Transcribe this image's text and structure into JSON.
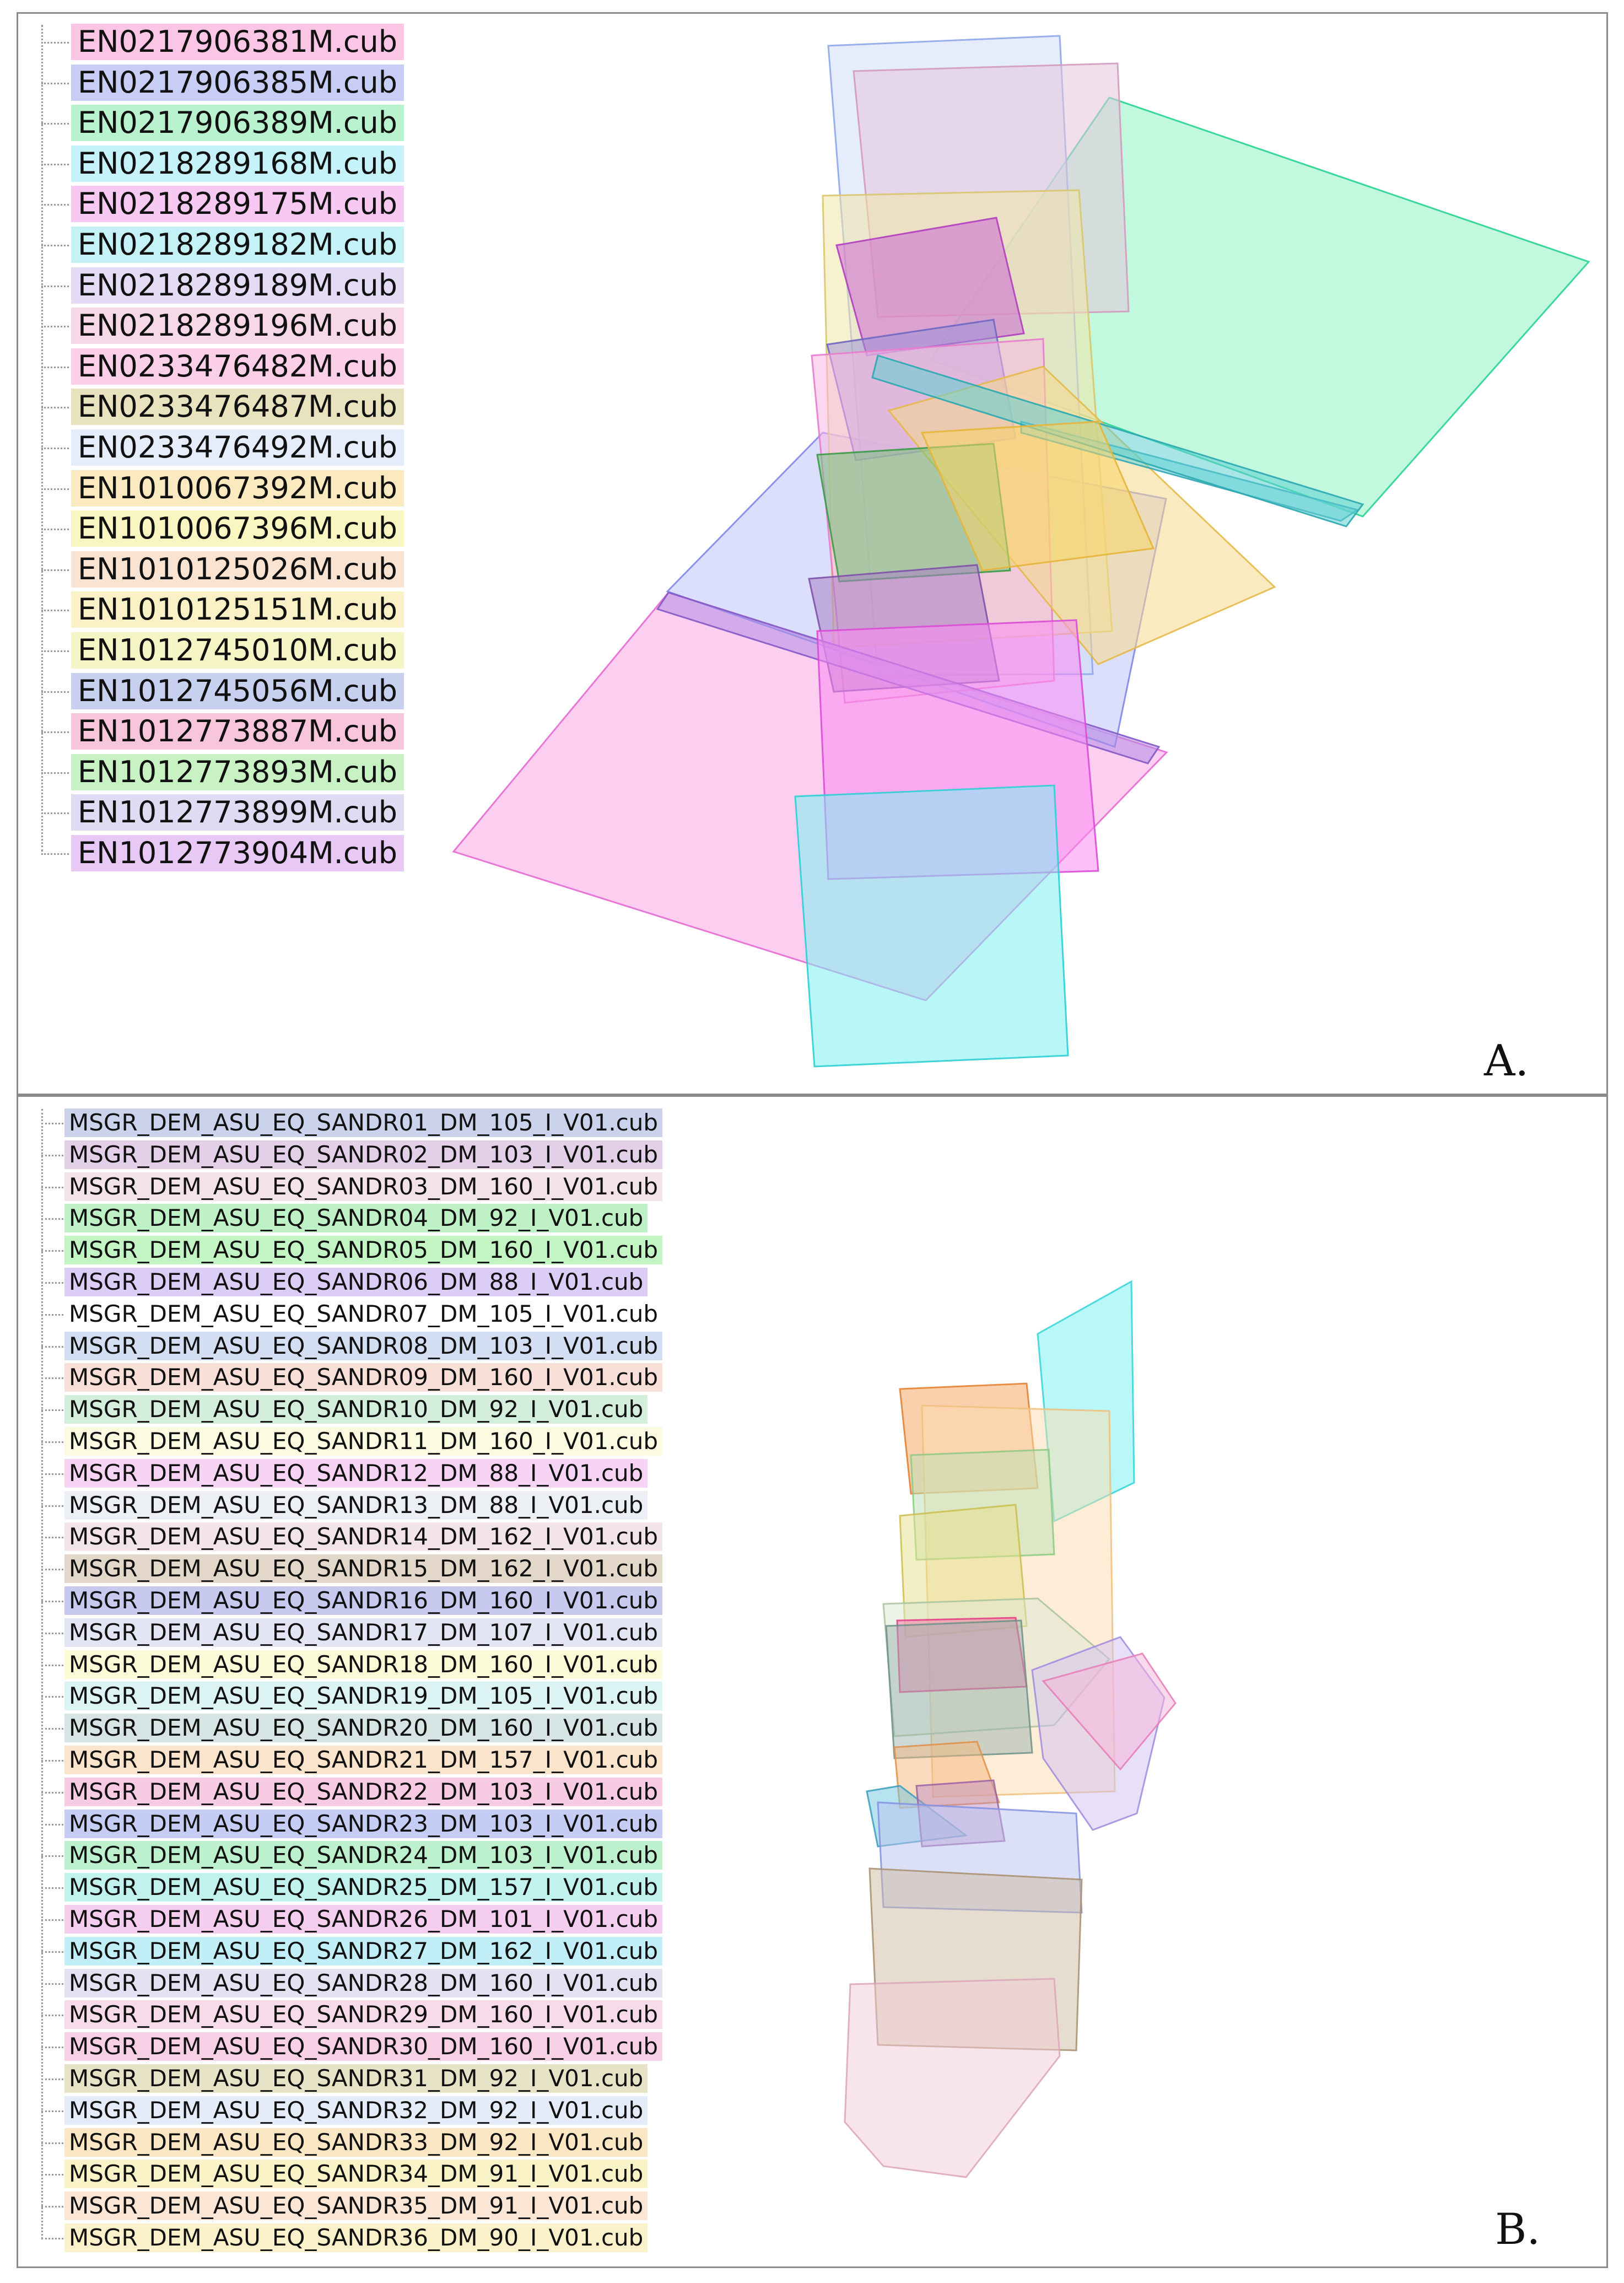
{
  "panelA": {
    "letter": "A.",
    "files": [
      {
        "name": "EN0217906381M.cub",
        "color": "#fbc6e6"
      },
      {
        "name": "EN0217906385M.cub",
        "color": "#c7cdf4"
      },
      {
        "name": "EN0217906389M.cub",
        "color": "#b9f2cf"
      },
      {
        "name": "EN0218289168M.cub",
        "color": "#c6f3fa"
      },
      {
        "name": "EN0218289175M.cub",
        "color": "#f7c8f2"
      },
      {
        "name": "EN0218289182M.cub",
        "color": "#c4f2f7"
      },
      {
        "name": "EN0218289189M.cub",
        "color": "#e3dcf4"
      },
      {
        "name": "EN0218289196M.cub",
        "color": "#f7d8e6"
      },
      {
        "name": "EN0233476482M.cub",
        "color": "#fbcfe7"
      },
      {
        "name": "EN0233476487M.cub",
        "color": "#e9e2bf"
      },
      {
        "name": "EN0233476492M.cub",
        "color": "#e5edfb"
      },
      {
        "name": "EN1010067392M.cub",
        "color": "#fbe9bf"
      },
      {
        "name": "EN1010067396M.cub",
        "color": "#f9f6c1"
      },
      {
        "name": "EN1010125026M.cub",
        "color": "#fbe3d2"
      },
      {
        "name": "EN1010125151M.cub",
        "color": "#fbf1c7"
      },
      {
        "name": "EN1012745010M.cub",
        "color": "#f5f5c6"
      },
      {
        "name": "EN1012745056M.cub",
        "color": "#c8d0f0"
      },
      {
        "name": "EN1012773887M.cub",
        "color": "#f8c6da"
      },
      {
        "name": "EN1012773893M.cub",
        "color": "#c9f2c4"
      },
      {
        "name": "EN1012773899M.cub",
        "color": "#dedbf2"
      },
      {
        "name": "EN1012773904M.cub",
        "color": "#e8c8f4"
      }
    ]
  },
  "panelB": {
    "letter": "B.",
    "files": [
      {
        "name": "MSGR_DEM_ASU_EQ_SANDR01_DM_105_I_V01.cub",
        "color": "#cbd3ec"
      },
      {
        "name": "MSGR_DEM_ASU_EQ_SANDR02_DM_103_I_V01.cub",
        "color": "#e4cfe8"
      },
      {
        "name": "MSGR_DEM_ASU_EQ_SANDR03_DM_160_I_V01.cub",
        "color": "#f3e3e6"
      },
      {
        "name": "MSGR_DEM_ASU_EQ_SANDR04_DM_92_I_V01.cub",
        "color": "#bff1c6"
      },
      {
        "name": "MSGR_DEM_ASU_EQ_SANDR05_DM_160_I_V01.cub",
        "color": "#c3f5c4"
      },
      {
        "name": "MSGR_DEM_ASU_EQ_SANDR06_DM_88_I_V01.cub",
        "color": "#dccdf6"
      },
      {
        "name": "MSGR_DEM_ASU_EQ_SANDR07_DM_105_I_V01.cub",
        "color": "#ffffff"
      },
      {
        "name": "MSGR_DEM_ASU_EQ_SANDR08_DM_103_I_V01.cub",
        "color": "#d4def2"
      },
      {
        "name": "MSGR_DEM_ASU_EQ_SANDR09_DM_160_I_V01.cub",
        "color": "#f8e0d8"
      },
      {
        "name": "MSGR_DEM_ASU_EQ_SANDR10_DM_92_I_V01.cub",
        "color": "#d3eedb"
      },
      {
        "name": "MSGR_DEM_ASU_EQ_SANDR11_DM_160_I_V01.cub",
        "color": "#fbfbe2"
      },
      {
        "name": "MSGR_DEM_ASU_EQ_SANDR12_DM_88_I_V01.cub",
        "color": "#f7d4f4"
      },
      {
        "name": "MSGR_DEM_ASU_EQ_SANDR13_DM_88_I_V01.cub",
        "color": "#eceff3"
      },
      {
        "name": "MSGR_DEM_ASU_EQ_SANDR14_DM_162_I_V01.cub",
        "color": "#f2e4ea"
      },
      {
        "name": "MSGR_DEM_ASU_EQ_SANDR15_DM_162_I_V01.cub",
        "color": "#e2d7c8"
      },
      {
        "name": "MSGR_DEM_ASU_EQ_SANDR16_DM_160_I_V01.cub",
        "color": "#c7c9ef"
      },
      {
        "name": "MSGR_DEM_ASU_EQ_SANDR17_DM_107_I_V01.cub",
        "color": "#e4e5f4"
      },
      {
        "name": "MSGR_DEM_ASU_EQ_SANDR18_DM_160_I_V01.cub",
        "color": "#fbfbd8"
      },
      {
        "name": "MSGR_DEM_ASU_EQ_SANDR19_DM_105_I_V01.cub",
        "color": "#dcf4f4"
      },
      {
        "name": "MSGR_DEM_ASU_EQ_SANDR20_DM_160_I_V01.cub",
        "color": "#d6e4e4"
      },
      {
        "name": "MSGR_DEM_ASU_EQ_SANDR21_DM_157_I_V01.cub",
        "color": "#fbe4cc"
      },
      {
        "name": "MSGR_DEM_ASU_EQ_SANDR22_DM_103_I_V01.cub",
        "color": "#f7cbe3"
      },
      {
        "name": "MSGR_DEM_ASU_EQ_SANDR23_DM_103_I_V01.cub",
        "color": "#c6cdf4"
      },
      {
        "name": "MSGR_DEM_ASU_EQ_SANDR24_DM_103_I_V01.cub",
        "color": "#bdf1cd"
      },
      {
        "name": "MSGR_DEM_ASU_EQ_SANDR25_DM_157_I_V01.cub",
        "color": "#c1f2ed"
      },
      {
        "name": "MSGR_DEM_ASU_EQ_SANDR26_DM_101_I_V01.cub",
        "color": "#f4cdef"
      },
      {
        "name": "MSGR_DEM_ASU_EQ_SANDR27_DM_162_I_V01.cub",
        "color": "#c1eef7"
      },
      {
        "name": "MSGR_DEM_ASU_EQ_SANDR28_DM_160_I_V01.cub",
        "color": "#e6e0f3"
      },
      {
        "name": "MSGR_DEM_ASU_EQ_SANDR29_DM_160_I_V01.cub",
        "color": "#f7dbe8"
      },
      {
        "name": "MSGR_DEM_ASU_EQ_SANDR30_DM_160_I_V01.cub",
        "color": "#f8d0e6"
      },
      {
        "name": "MSGR_DEM_ASU_EQ_SANDR31_DM_92_I_V01.cub",
        "color": "#e7e3c6"
      },
      {
        "name": "MSGR_DEM_ASU_EQ_SANDR32_DM_92_I_V01.cub",
        "color": "#e4ecf9"
      },
      {
        "name": "MSGR_DEM_ASU_EQ_SANDR33_DM_92_I_V01.cub",
        "color": "#fbe7c4"
      },
      {
        "name": "MSGR_DEM_ASU_EQ_SANDR34_DM_91_I_V01.cub",
        "color": "#fbf3c8"
      },
      {
        "name": "MSGR_DEM_ASU_EQ_SANDR35_DM_91_I_V01.cub",
        "color": "#fbe5d4"
      },
      {
        "name": "MSGR_DEM_ASU_EQ_SANDR36_DM_90_I_V01.cub",
        "color": "#fbf2cc"
      }
    ]
  }
}
